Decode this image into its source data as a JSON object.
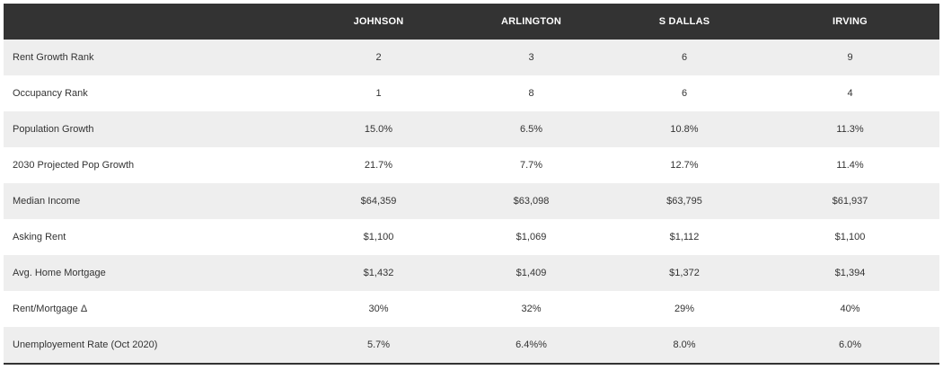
{
  "table": {
    "columns": [
      "",
      "JOHNSON",
      "ARLINGTON",
      "S DALLAS",
      "IRVING"
    ],
    "rows": [
      {
        "label": "Rent Growth Rank",
        "values": [
          "2",
          "3",
          "6",
          "9"
        ]
      },
      {
        "label": "Occupancy Rank",
        "values": [
          "1",
          "8",
          "6",
          "4"
        ]
      },
      {
        "label": "Population Growth",
        "values": [
          "15.0%",
          "6.5%",
          "10.8%",
          "11.3%"
        ]
      },
      {
        "label": "2030 Projected Pop Growth",
        "values": [
          "21.7%",
          "7.7%",
          "12.7%",
          "11.4%"
        ]
      },
      {
        "label": "Median Income",
        "values": [
          "$64,359",
          "$63,098",
          "$63,795",
          "$61,937"
        ]
      },
      {
        "label": "Asking Rent",
        "values": [
          "$1,100",
          "$1,069",
          "$1,112",
          "$1,100"
        ]
      },
      {
        "label": "Avg. Home Mortgage",
        "values": [
          "$1,432",
          "$1,409",
          "$1,372",
          "$1,394"
        ]
      },
      {
        "label": "Rent/Mortgage Δ",
        "values": [
          "30%",
          "32%",
          "29%",
          "40%"
        ]
      },
      {
        "label": "Unemployement Rate (Oct 2020)",
        "values": [
          "5.7%",
          "6.4%%",
          "8.0%",
          "6.0%"
        ]
      }
    ]
  },
  "colors": {
    "header_bg": "#333333",
    "header_text": "#ffffff",
    "row_shaded": "#eeeeee",
    "row_plain": "#ffffff",
    "text": "#333333"
  }
}
